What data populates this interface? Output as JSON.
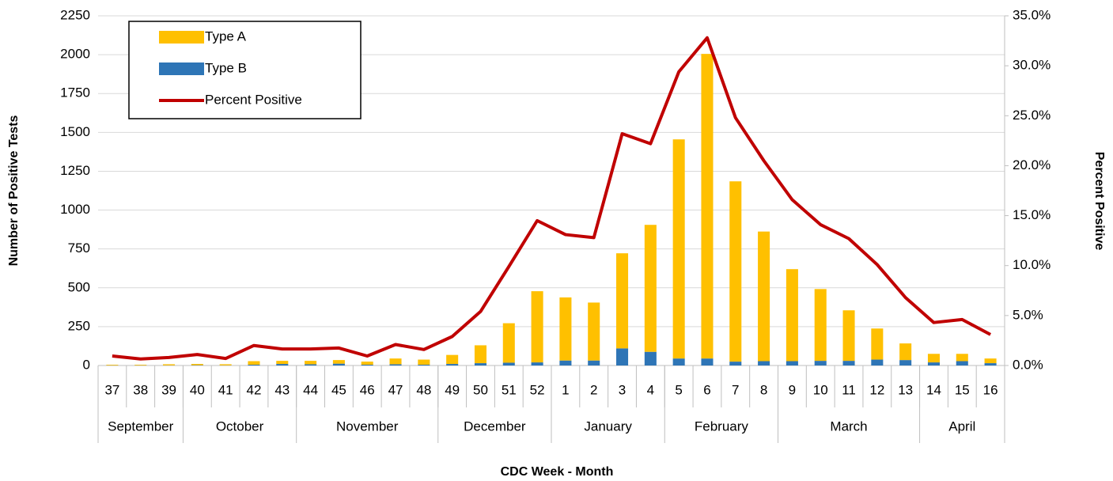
{
  "chart_data": {
    "type": "bar",
    "stacked": true,
    "x_label": "CDC Week - Month",
    "y_label": "Number of Positive Tests",
    "y2_label": "Percent Positive",
    "categories": [
      "37",
      "38",
      "39",
      "40",
      "41",
      "42",
      "43",
      "44",
      "45",
      "46",
      "47",
      "48",
      "49",
      "50",
      "51",
      "52",
      "1",
      "2",
      "3",
      "4",
      "5",
      "6",
      "7",
      "8",
      "9",
      "10",
      "11",
      "12",
      "13",
      "14",
      "15",
      "16"
    ],
    "category_groups": [
      {
        "label": "September",
        "span": 3
      },
      {
        "label": "October",
        "span": 4
      },
      {
        "label": "November",
        "span": 5
      },
      {
        "label": "December",
        "span": 4
      },
      {
        "label": "January",
        "span": 4
      },
      {
        "label": "February",
        "span": 4
      },
      {
        "label": "March",
        "span": 5
      },
      {
        "label": "April",
        "span": 3
      }
    ],
    "series": [
      {
        "name": "Type A",
        "type": "bar",
        "color": "#FFC000",
        "values": [
          4,
          4,
          7,
          8,
          7,
          23,
          20,
          22,
          23,
          20,
          37,
          33,
          58,
          115,
          254,
          458,
          406,
          373,
          612,
          817,
          1410,
          1960,
          1160,
          834,
          592,
          462,
          325,
          200,
          107,
          55,
          47,
          30
        ]
      },
      {
        "name": "Type B",
        "type": "bar",
        "color": "#2E75B6",
        "values": [
          1,
          1,
          1,
          2,
          1,
          5,
          10,
          8,
          12,
          5,
          8,
          5,
          10,
          15,
          18,
          20,
          32,
          32,
          110,
          88,
          45,
          45,
          25,
          28,
          28,
          30,
          30,
          38,
          35,
          20,
          28,
          15
        ]
      },
      {
        "name": "Percent Positive",
        "type": "line",
        "axis": "y2",
        "color": "#C00000",
        "values": [
          0.95,
          0.65,
          0.8,
          1.1,
          0.7,
          2.0,
          1.65,
          1.65,
          1.75,
          0.95,
          2.1,
          1.6,
          2.9,
          5.4,
          9.9,
          14.5,
          13.1,
          12.8,
          23.2,
          22.2,
          29.4,
          32.8,
          24.8,
          20.5,
          16.6,
          14.1,
          12.7,
          10.1,
          6.8,
          4.3,
          4.6,
          3.1
        ]
      }
    ],
    "ylim": [
      0,
      2250
    ],
    "yticks": [
      0,
      250,
      500,
      750,
      1000,
      1250,
      1500,
      1750,
      2000,
      2250
    ],
    "y2lim": [
      0,
      35
    ],
    "y2ticks": [
      {
        "value": 0,
        "label": "0.0%"
      },
      {
        "value": 5,
        "label": "5.0%"
      },
      {
        "value": 10,
        "label": "10.0%"
      },
      {
        "value": 15,
        "label": "15.0%"
      },
      {
        "value": 20,
        "label": "20.0%"
      },
      {
        "value": 25,
        "label": "25.0%"
      },
      {
        "value": 30,
        "label": "30.0%"
      },
      {
        "value": 35,
        "label": "35.0%"
      }
    ],
    "grid": true,
    "legend": "top-left"
  }
}
